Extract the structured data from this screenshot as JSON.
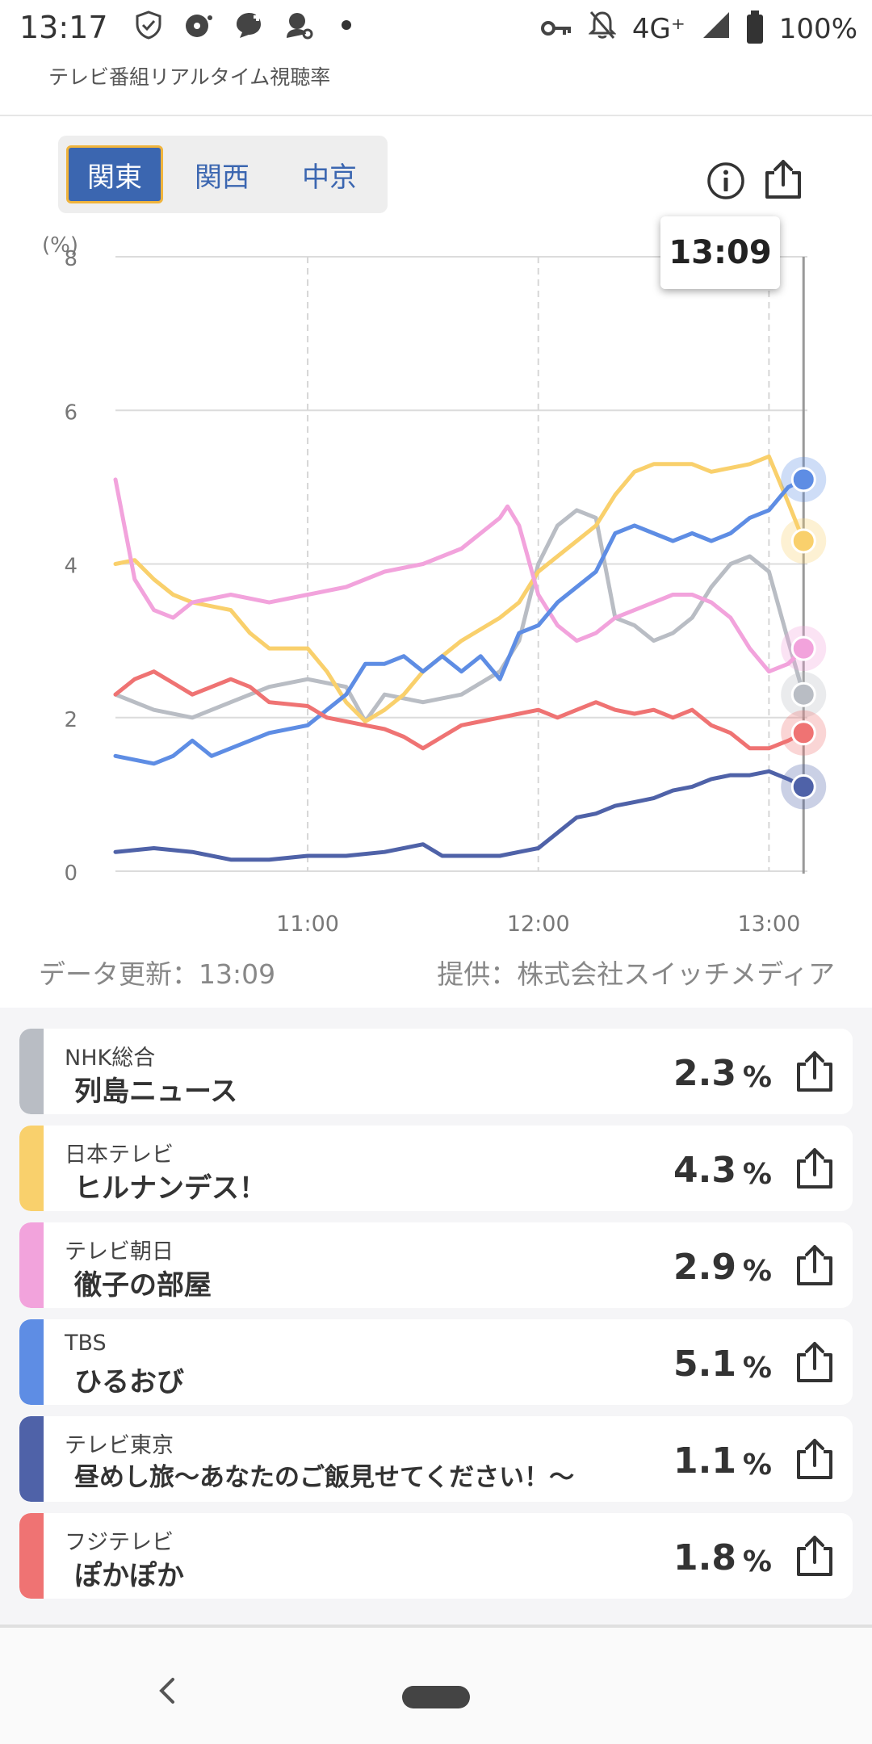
{
  "status_bar": {
    "time": "13:17",
    "network": "4G⁺",
    "battery": "100%"
  },
  "header": {
    "title": "テレビ番組リアルタイム視聴率"
  },
  "tabs": [
    {
      "label": "関東",
      "active": true
    },
    {
      "label": "関西",
      "active": false
    },
    {
      "label": "中京",
      "active": false
    }
  ],
  "tooltip_time": "13:09",
  "chart_data": {
    "type": "line",
    "ylabel": "(%)",
    "ylim": [
      0,
      8
    ],
    "yticks": [
      "0",
      "2",
      "4",
      "6",
      "8"
    ],
    "xticks": [
      "11:00",
      "12:00",
      "13:00"
    ],
    "xlim": [
      "10:10",
      "13:10"
    ],
    "grid": true,
    "series": [
      {
        "name": "NHK総合",
        "color": "#b9bdc4",
        "times": [
          "10:10",
          "10:20",
          "10:30",
          "10:40",
          "10:50",
          "11:00",
          "11:10",
          "11:15",
          "11:20",
          "11:30",
          "11:40",
          "11:50",
          "11:55",
          "12:00",
          "12:05",
          "12:10",
          "12:15",
          "12:20",
          "12:25",
          "12:30",
          "12:35",
          "12:40",
          "12:45",
          "12:50",
          "12:55",
          "13:00",
          "13:05",
          "13:09"
        ],
        "values": [
          2.3,
          2.1,
          2.0,
          2.2,
          2.4,
          2.5,
          2.4,
          1.95,
          2.3,
          2.2,
          2.3,
          2.6,
          3.0,
          4.0,
          4.5,
          4.7,
          4.6,
          3.3,
          3.2,
          3.0,
          3.1,
          3.3,
          3.7,
          4.0,
          4.1,
          3.9,
          3.0,
          2.3
        ]
      },
      {
        "name": "日本テレビ",
        "color": "#f9d06c",
        "times": [
          "10:10",
          "10:15",
          "10:20",
          "10:25",
          "10:30",
          "10:40",
          "10:45",
          "10:50",
          "11:00",
          "11:05",
          "11:10",
          "11:15",
          "11:20",
          "11:25",
          "11:30",
          "11:40",
          "11:50",
          "11:55",
          "12:00",
          "12:05",
          "12:10",
          "12:15",
          "12:20",
          "12:25",
          "12:30",
          "12:35",
          "12:40",
          "12:45",
          "12:50",
          "12:55",
          "13:00",
          "13:05",
          "13:09"
        ],
        "values": [
          4.0,
          4.05,
          3.8,
          3.6,
          3.5,
          3.4,
          3.1,
          2.9,
          2.9,
          2.6,
          2.2,
          1.95,
          2.1,
          2.3,
          2.6,
          3.0,
          3.3,
          3.5,
          3.9,
          4.1,
          4.3,
          4.5,
          4.9,
          5.2,
          5.3,
          5.3,
          5.3,
          5.2,
          5.25,
          5.3,
          5.4,
          4.8,
          4.3
        ]
      },
      {
        "name": "テレビ朝日",
        "color": "#f2a3dc",
        "times": [
          "10:10",
          "10:15",
          "10:20",
          "10:25",
          "10:30",
          "10:40",
          "10:50",
          "11:00",
          "11:10",
          "11:15",
          "11:20",
          "11:30",
          "11:40",
          "11:50",
          "11:52",
          "11:55",
          "12:00",
          "12:05",
          "12:10",
          "12:15",
          "12:20",
          "12:25",
          "12:30",
          "12:35",
          "12:40",
          "12:45",
          "12:50",
          "12:55",
          "13:00",
          "13:05",
          "13:09"
        ],
        "values": [
          5.1,
          3.8,
          3.4,
          3.3,
          3.5,
          3.6,
          3.5,
          3.6,
          3.7,
          3.8,
          3.9,
          4.0,
          4.2,
          4.6,
          4.75,
          4.5,
          3.6,
          3.2,
          3.0,
          3.1,
          3.3,
          3.4,
          3.5,
          3.6,
          3.6,
          3.5,
          3.3,
          2.9,
          2.6,
          2.7,
          2.9
        ]
      },
      {
        "name": "TBS",
        "color": "#5e8de4",
        "times": [
          "10:10",
          "10:15",
          "10:20",
          "10:25",
          "10:30",
          "10:35",
          "10:40",
          "10:45",
          "10:50",
          "11:00",
          "11:05",
          "11:10",
          "11:15",
          "11:20",
          "11:25",
          "11:30",
          "11:35",
          "11:40",
          "11:45",
          "11:50",
          "11:55",
          "12:00",
          "12:05",
          "12:10",
          "12:15",
          "12:20",
          "12:25",
          "12:30",
          "12:35",
          "12:40",
          "12:45",
          "12:50",
          "12:55",
          "13:00",
          "13:05",
          "13:09"
        ],
        "values": [
          1.5,
          1.45,
          1.4,
          1.5,
          1.7,
          1.5,
          1.6,
          1.7,
          1.8,
          1.9,
          2.1,
          2.3,
          2.7,
          2.7,
          2.8,
          2.6,
          2.8,
          2.6,
          2.8,
          2.5,
          3.1,
          3.2,
          3.5,
          3.7,
          3.9,
          4.4,
          4.5,
          4.4,
          4.3,
          4.4,
          4.3,
          4.4,
          4.6,
          4.7,
          5.0,
          5.1
        ]
      },
      {
        "name": "テレビ東京",
        "color": "#4f62a8",
        "times": [
          "10:10",
          "10:20",
          "10:30",
          "10:40",
          "10:50",
          "11:00",
          "11:10",
          "11:20",
          "11:30",
          "11:35",
          "11:40",
          "11:50",
          "11:55",
          "12:00",
          "12:05",
          "12:10",
          "12:15",
          "12:20",
          "12:25",
          "12:30",
          "12:35",
          "12:40",
          "12:45",
          "12:50",
          "12:55",
          "13:00",
          "13:05",
          "13:09"
        ],
        "values": [
          0.25,
          0.3,
          0.25,
          0.15,
          0.15,
          0.2,
          0.2,
          0.25,
          0.35,
          0.2,
          0.2,
          0.2,
          0.25,
          0.3,
          0.5,
          0.7,
          0.75,
          0.85,
          0.9,
          0.95,
          1.05,
          1.1,
          1.2,
          1.25,
          1.25,
          1.3,
          1.2,
          1.1
        ]
      },
      {
        "name": "フジテレビ",
        "color": "#ef7373",
        "times": [
          "10:10",
          "10:15",
          "10:20",
          "10:25",
          "10:30",
          "10:35",
          "10:40",
          "10:45",
          "10:50",
          "11:00",
          "11:05",
          "11:10",
          "11:15",
          "11:20",
          "11:25",
          "11:30",
          "11:35",
          "11:40",
          "11:45",
          "11:50",
          "11:55",
          "12:00",
          "12:05",
          "12:10",
          "12:15",
          "12:20",
          "12:25",
          "12:30",
          "12:35",
          "12:40",
          "12:45",
          "12:50",
          "12:55",
          "13:00",
          "13:05",
          "13:09"
        ],
        "values": [
          2.3,
          2.5,
          2.6,
          2.45,
          2.3,
          2.4,
          2.5,
          2.4,
          2.2,
          2.15,
          2.0,
          1.95,
          1.9,
          1.85,
          1.75,
          1.6,
          1.75,
          1.9,
          1.95,
          2.0,
          2.05,
          2.1,
          2.0,
          2.1,
          2.2,
          2.1,
          2.05,
          2.1,
          2.0,
          2.1,
          1.9,
          1.8,
          1.6,
          1.6,
          1.7,
          1.8
        ]
      }
    ]
  },
  "footer_info": {
    "updated": "データ更新：13:09",
    "provider": "提供：株式会社スイッチメディア"
  },
  "ratings": [
    {
      "channel": "NHK総合",
      "program": "列島ニュース",
      "value": "2.3",
      "unit": "%",
      "color": "#b9bdc4"
    },
    {
      "channel": "日本テレビ",
      "program": "ヒルナンデス！",
      "value": "4.3",
      "unit": "%",
      "color": "#f9d06c"
    },
    {
      "channel": "テレビ朝日",
      "program": "徹子の部屋",
      "value": "2.9",
      "unit": "%",
      "color": "#f2a3dc"
    },
    {
      "channel": "TBS",
      "program": "ひるおび",
      "value": "5.1",
      "unit": "%",
      "color": "#5e8de4"
    },
    {
      "channel": "テレビ東京",
      "program": "昼めし旅〜あなたのご飯見せてください！〜",
      "value": "1.1",
      "unit": "%",
      "color": "#4f62a8"
    },
    {
      "channel": "フジテレビ",
      "program": "ぽかぽか",
      "value": "1.8",
      "unit": "%",
      "color": "#ef7373"
    }
  ]
}
